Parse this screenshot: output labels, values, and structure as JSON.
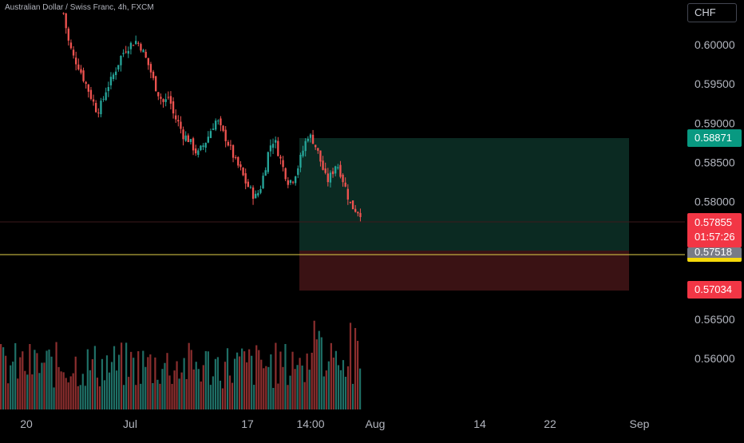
{
  "header": {
    "symbol_title": "Australian Dollar / Swiss Franc, 4h, FXCM",
    "currency": "CHF"
  },
  "price_axis": {
    "ticks": [
      "0.60000",
      "0.59500",
      "0.59000",
      "0.58500",
      "0.58000",
      "0.56500",
      "0.56000"
    ]
  },
  "time_axis": {
    "ticks": [
      "20",
      "Jul",
      "17",
      "14:00",
      "Aug",
      "14",
      "22",
      "Sep"
    ]
  },
  "badges": {
    "target_price": "0.58871",
    "last_price": "0.57855",
    "countdown": "01:57:26",
    "entry_price": "0.57518",
    "stop_price": "0.57034"
  },
  "colors": {
    "background": "#000000",
    "up_candle": "#26a69a",
    "down_candle": "#ef5350",
    "target_zone": "#0b2a22",
    "stop_zone": "#3a1214",
    "entry_line": "#e2d24a",
    "target_badge": "#089981",
    "last_badge": "#f23645",
    "stop_badge": "#f23645"
  },
  "chart_data": {
    "type": "candlestick",
    "title": "Australian Dollar / Swiss Franc, 4h, FXCM",
    "ylim": [
      0.5565,
      0.603
    ],
    "grid": false,
    "position_tool": {
      "type": "long",
      "entry": 0.57518,
      "target": 0.58871,
      "stop": 0.57034
    },
    "close_path": [
      0.604,
      0.6005,
      0.5985,
      0.5975,
      0.596,
      0.5945,
      0.593,
      0.5915,
      0.5925,
      0.5945,
      0.5955,
      0.597,
      0.5985,
      0.5995,
      0.6,
      0.6005,
      0.6,
      0.5985,
      0.597,
      0.595,
      0.5935,
      0.5925,
      0.5935,
      0.591,
      0.59,
      0.5885,
      0.588,
      0.587,
      0.586,
      0.587,
      0.588,
      0.5895,
      0.5905,
      0.589,
      0.588,
      0.5865,
      0.585,
      0.584,
      0.5825,
      0.5815,
      0.5805,
      0.5815,
      0.584,
      0.587,
      0.588,
      0.586,
      0.584,
      0.5825,
      0.583,
      0.5845,
      0.5865,
      0.5885,
      0.588,
      0.5865,
      0.5845,
      0.5825,
      0.5835,
      0.585,
      0.5835,
      0.5815,
      0.5795,
      0.579,
      0.5786
    ]
  }
}
